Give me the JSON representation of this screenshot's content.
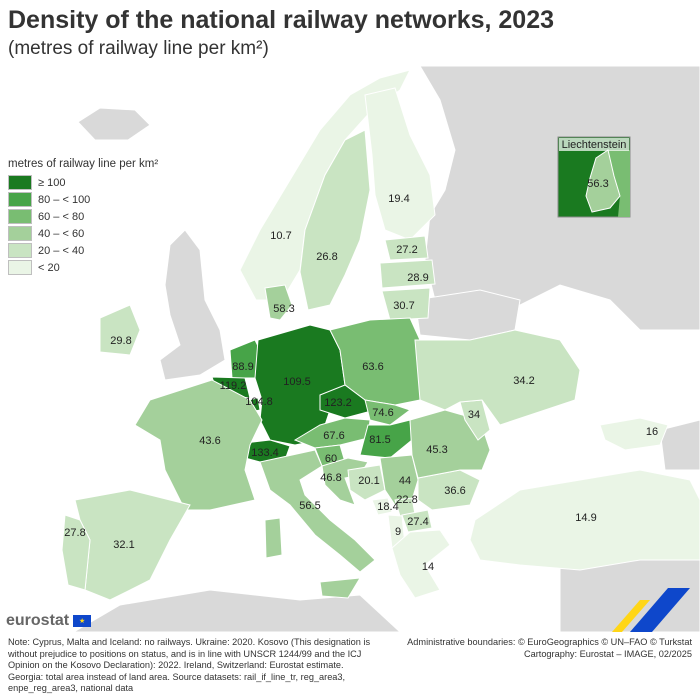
{
  "title": "Density of the national railway networks, 2023",
  "subtitle": "(metres of railway line per km²)",
  "legend": {
    "title": "metres of railway line per km²",
    "classes": [
      {
        "label": "≥ 100",
        "color": "#1a7a20"
      },
      {
        "label": "80 – < 100",
        "color": "#47a448"
      },
      {
        "label": "60 – < 80",
        "color": "#79bd72"
      },
      {
        "label": "40 – < 60",
        "color": "#a4d09b"
      },
      {
        "label": "20 – < 40",
        "color": "#c9e4c2"
      },
      {
        "label": "< 20",
        "color": "#eaf5e6"
      }
    ]
  },
  "colors": {
    "sea": "#ffffff",
    "no_data_land": "#d9d9d9",
    "border": "#ffffff"
  },
  "inset": {
    "title": "Liechtenstein",
    "value": "56.3",
    "class": 3
  },
  "countries": [
    {
      "name": "Norway",
      "value": "10.7",
      "class": 5
    },
    {
      "name": "Sweden",
      "value": "26.8",
      "class": 4
    },
    {
      "name": "Finland",
      "value": "19.4",
      "class": 5
    },
    {
      "name": "Estonia",
      "value": "27.2",
      "class": 4
    },
    {
      "name": "Latvia",
      "value": "28.9",
      "class": 4
    },
    {
      "name": "Lithuania",
      "value": "30.7",
      "class": 4
    },
    {
      "name": "Denmark",
      "value": "58.3",
      "class": 3
    },
    {
      "name": "Ireland",
      "value": "29.8",
      "class": 4
    },
    {
      "name": "Netherlands",
      "value": "88.9",
      "class": 1
    },
    {
      "name": "Belgium",
      "value": "119.2",
      "class": 0
    },
    {
      "name": "Luxembourg",
      "value": "104.8",
      "class": 0
    },
    {
      "name": "Germany",
      "value": "109.5",
      "class": 0
    },
    {
      "name": "Poland",
      "value": "63.6",
      "class": 2
    },
    {
      "name": "Czechia",
      "value": "123.2",
      "class": 0
    },
    {
      "name": "Slovakia",
      "value": "74.6",
      "class": 2
    },
    {
      "name": "Austria",
      "value": "67.6",
      "class": 2
    },
    {
      "name": "Hungary",
      "value": "81.5",
      "class": 1
    },
    {
      "name": "Switzerland",
      "value": "133.4",
      "class": 0
    },
    {
      "name": "Slovenia",
      "value": "60",
      "class": 2
    },
    {
      "name": "France",
      "value": "43.6",
      "class": 3
    },
    {
      "name": "Spain",
      "value": "32.1",
      "class": 4
    },
    {
      "name": "Portugal",
      "value": "27.8",
      "class": 4
    },
    {
      "name": "Italy",
      "value": "56.5",
      "class": 3
    },
    {
      "name": "Croatia",
      "value": "46.8",
      "class": 3
    },
    {
      "name": "Bosnia and Herzegovina",
      "value": "20.1",
      "class": 4
    },
    {
      "name": "Serbia",
      "value": "44",
      "class": 3
    },
    {
      "name": "Montenegro",
      "value": "18.4",
      "class": 5
    },
    {
      "name": "Kosovo",
      "value": "22.8",
      "class": 4
    },
    {
      "name": "Albania",
      "value": "9",
      "class": 5
    },
    {
      "name": "North Macedonia",
      "value": "27.4",
      "class": 4
    },
    {
      "name": "Greece",
      "value": "14",
      "class": 5
    },
    {
      "name": "Bulgaria",
      "value": "36.6",
      "class": 4
    },
    {
      "name": "Romania",
      "value": "45.3",
      "class": 3
    },
    {
      "name": "Moldova",
      "value": "34",
      "class": 4
    },
    {
      "name": "Ukraine",
      "value": "34.2",
      "class": 4
    },
    {
      "name": "Georgia",
      "value": "16",
      "class": 5
    },
    {
      "name": "Türkiye",
      "value": "14.9",
      "class": 5
    }
  ],
  "footer": {
    "brand": "eurostat",
    "note": "Note: Cyprus, Malta and Iceland: no railways. Ukraine: 2020. Kosovo (This designation is without prejudice to positions on status, and is in line with UNSCR 1244/99 and the ICJ Opinion on the Kosovo Declaration): 2022. Ireland, Switzerland: Eurostat estimate. Georgia: total area instead of land area. Source datasets: rail_if_line_tr, reg_area3, enpe_reg_area3, national data",
    "credit_1": "Administrative boundaries: © EuroGeographics © UN–FAO © Turkstat",
    "credit_2": "Cartography: Eurostat – IMAGE, 02/2025"
  }
}
